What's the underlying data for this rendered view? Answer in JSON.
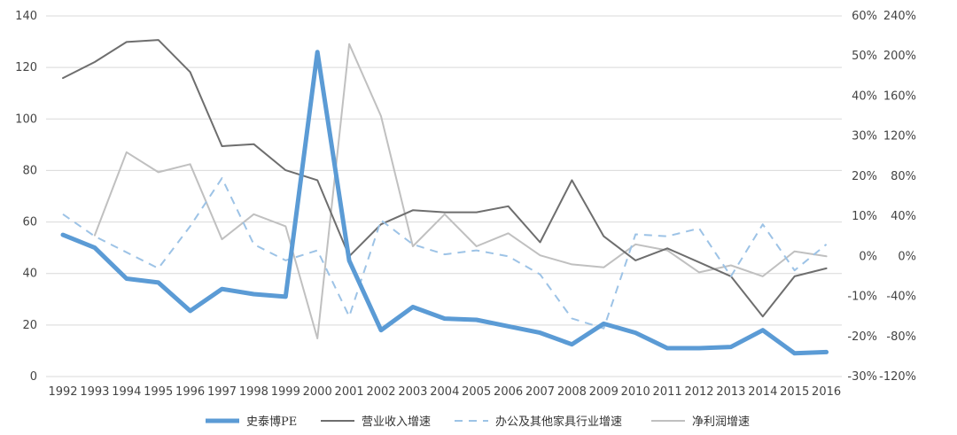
{
  "chart_data": {
    "type": "line",
    "title": "",
    "categories": [
      "1992",
      "1993",
      "1994",
      "1995",
      "1996",
      "1997",
      "1998",
      "1999",
      "2000",
      "2001",
      "2002",
      "2003",
      "2004",
      "2005",
      "2006",
      "2007",
      "2008",
      "2009",
      "2010",
      "2011",
      "2012",
      "2013",
      "2014",
      "2015",
      "2016"
    ],
    "axes": {
      "left": {
        "ticks": [
          "0",
          "20",
          "40",
          "60",
          "80",
          "100",
          "120",
          "140"
        ],
        "ylim": [
          0,
          140
        ]
      },
      "right1": {
        "ticks": [
          "-30%",
          "-20%",
          "-10%",
          "0%",
          "10%",
          "20%",
          "30%",
          "40%",
          "50%",
          "60%"
        ],
        "ylim": [
          -30,
          60
        ]
      },
      "right2": {
        "ticks": [
          "-120%",
          "-80%",
          "-40%",
          "0%",
          "40%",
          "80%",
          "120%",
          "160%",
          "200%",
          "240%"
        ],
        "ylim": [
          -120,
          240
        ]
      }
    },
    "grid": true,
    "legend_position": "bottom",
    "series": [
      {
        "name": "史泰博PE",
        "axis": "left",
        "color": "#5b9bd5",
        "style": "solid-thick",
        "values": [
          55,
          50,
          38,
          36.5,
          25.5,
          34,
          32,
          31,
          126,
          45,
          18,
          27,
          22.5,
          22,
          19.5,
          17,
          12.5,
          20.5,
          17,
          11,
          11,
          11.5,
          18,
          9,
          9.5
        ]
      },
      {
        "name": "营业收入增速",
        "axis": "right1",
        "color": "#6e6e6e",
        "style": "solid",
        "values": [
          44.5,
          48.5,
          53.5,
          54,
          46,
          27.5,
          28,
          21.5,
          19,
          0,
          8,
          11.5,
          11,
          11,
          12.5,
          3.5,
          19,
          5,
          -1,
          2,
          -1.5,
          -5,
          -15,
          -5,
          -3
        ]
      },
      {
        "name": "办公及其他家具行业增速",
        "axis": "right1",
        "color": "#9dc3e6",
        "style": "dashed",
        "values": [
          10.5,
          5,
          1,
          -3,
          7.5,
          19.5,
          3,
          -1,
          1.5,
          -15,
          9,
          3,
          0.5,
          1.5,
          0,
          -4.5,
          -15.5,
          -18,
          5.5,
          5,
          7,
          -5,
          8,
          -3.5,
          3
        ]
      },
      {
        "name": "净利润增速",
        "axis": "right2",
        "color": "#c0c0c0",
        "style": "solid",
        "values": [
          null,
          21,
          104,
          84,
          92,
          17,
          42,
          30,
          -82,
          212,
          140,
          10,
          42,
          10,
          23,
          1,
          -8,
          -11,
          12,
          6,
          -16,
          -9,
          -20,
          5,
          0
        ]
      }
    ]
  }
}
